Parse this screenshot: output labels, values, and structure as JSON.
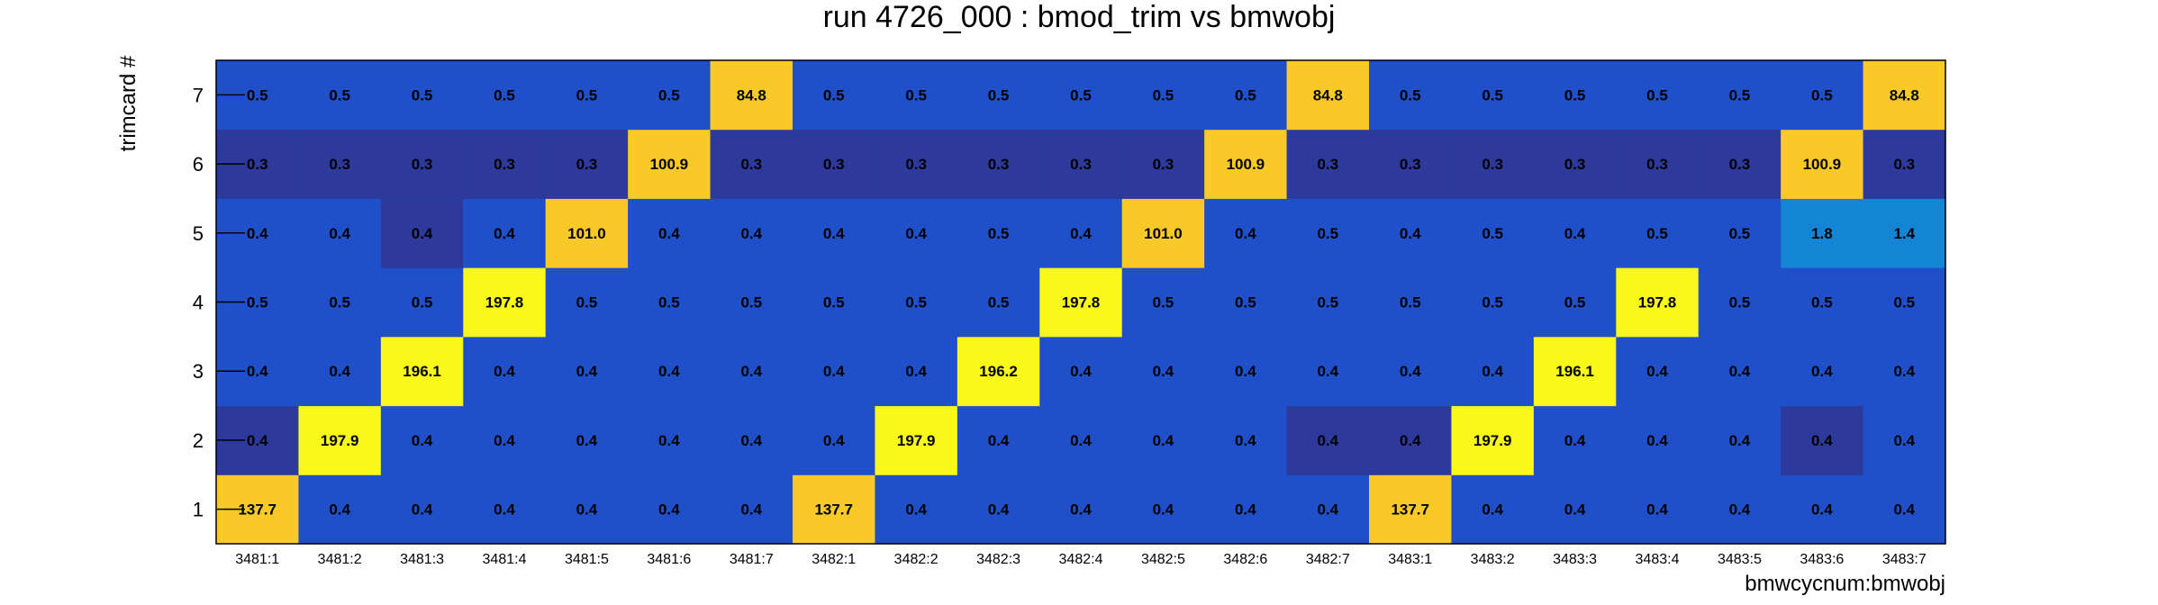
{
  "chart_data": {
    "type": "heatmap",
    "title": "run 4726_000 : bmod_trim vs bmwobj",
    "xlabel": "bmwcycnum:bmwobj",
    "ylabel": "trimcard #",
    "x_categories": [
      "3481:1",
      "3481:2",
      "3481:3",
      "3481:4",
      "3481:5",
      "3481:6",
      "3481:7",
      "3482:1",
      "3482:2",
      "3482:3",
      "3482:4",
      "3482:5",
      "3482:6",
      "3482:7",
      "3483:1",
      "3483:2",
      "3483:3",
      "3483:4",
      "3483:5",
      "3483:6",
      "3483:7"
    ],
    "y_categories": [
      "1",
      "2",
      "3",
      "4",
      "5",
      "6",
      "7"
    ],
    "values": [
      [
        "137.7",
        "0.4",
        "0.4",
        "0.4",
        "0.4",
        "0.4",
        "0.4",
        "137.7",
        "0.4",
        "0.4",
        "0.4",
        "0.4",
        "0.4",
        "0.4",
        "137.7",
        "0.4",
        "0.4",
        "0.4",
        "0.4",
        "0.4",
        "0.4"
      ],
      [
        "0.4",
        "197.9",
        "0.4",
        "0.4",
        "0.4",
        "0.4",
        "0.4",
        "0.4",
        "197.9",
        "0.4",
        "0.4",
        "0.4",
        "0.4",
        "0.4",
        "0.4",
        "197.9",
        "0.4",
        "0.4",
        "0.4",
        "0.4",
        "0.4"
      ],
      [
        "0.4",
        "0.4",
        "196.1",
        "0.4",
        "0.4",
        "0.4",
        "0.4",
        "0.4",
        "0.4",
        "196.2",
        "0.4",
        "0.4",
        "0.4",
        "0.4",
        "0.4",
        "0.4",
        "196.1",
        "0.4",
        "0.4",
        "0.4",
        "0.4"
      ],
      [
        "0.5",
        "0.5",
        "0.5",
        "197.8",
        "0.5",
        "0.5",
        "0.5",
        "0.5",
        "0.5",
        "0.5",
        "197.8",
        "0.5",
        "0.5",
        "0.5",
        "0.5",
        "0.5",
        "0.5",
        "197.8",
        "0.5",
        "0.5",
        "0.5"
      ],
      [
        "0.4",
        "0.4",
        "0.4",
        "0.4",
        "101.0",
        "0.4",
        "0.4",
        "0.4",
        "0.4",
        "0.5",
        "0.4",
        "101.0",
        "0.4",
        "0.5",
        "0.4",
        "0.5",
        "0.4",
        "0.5",
        "0.5",
        "1.8",
        "1.4"
      ],
      [
        "0.3",
        "0.3",
        "0.3",
        "0.3",
        "0.3",
        "100.9",
        "0.3",
        "0.3",
        "0.3",
        "0.3",
        "0.3",
        "0.3",
        "100.9",
        "0.3",
        "0.3",
        "0.3",
        "0.3",
        "0.3",
        "0.3",
        "100.9",
        "0.3"
      ],
      [
        "0.5",
        "0.5",
        "0.5",
        "0.5",
        "0.5",
        "0.5",
        "84.8",
        "0.5",
        "0.5",
        "0.5",
        "0.5",
        "0.5",
        "0.5",
        "84.8",
        "0.5",
        "0.5",
        "0.5",
        "0.5",
        "0.5",
        "0.5",
        "84.8"
      ]
    ],
    "colorscale": {
      "deep": "#2d3a9c",
      "base": "#1f50c9",
      "mid": "#1485d4",
      "gold": "#f9c928",
      "yellow": "#f8f81a"
    },
    "grid": false,
    "legend": "none"
  }
}
